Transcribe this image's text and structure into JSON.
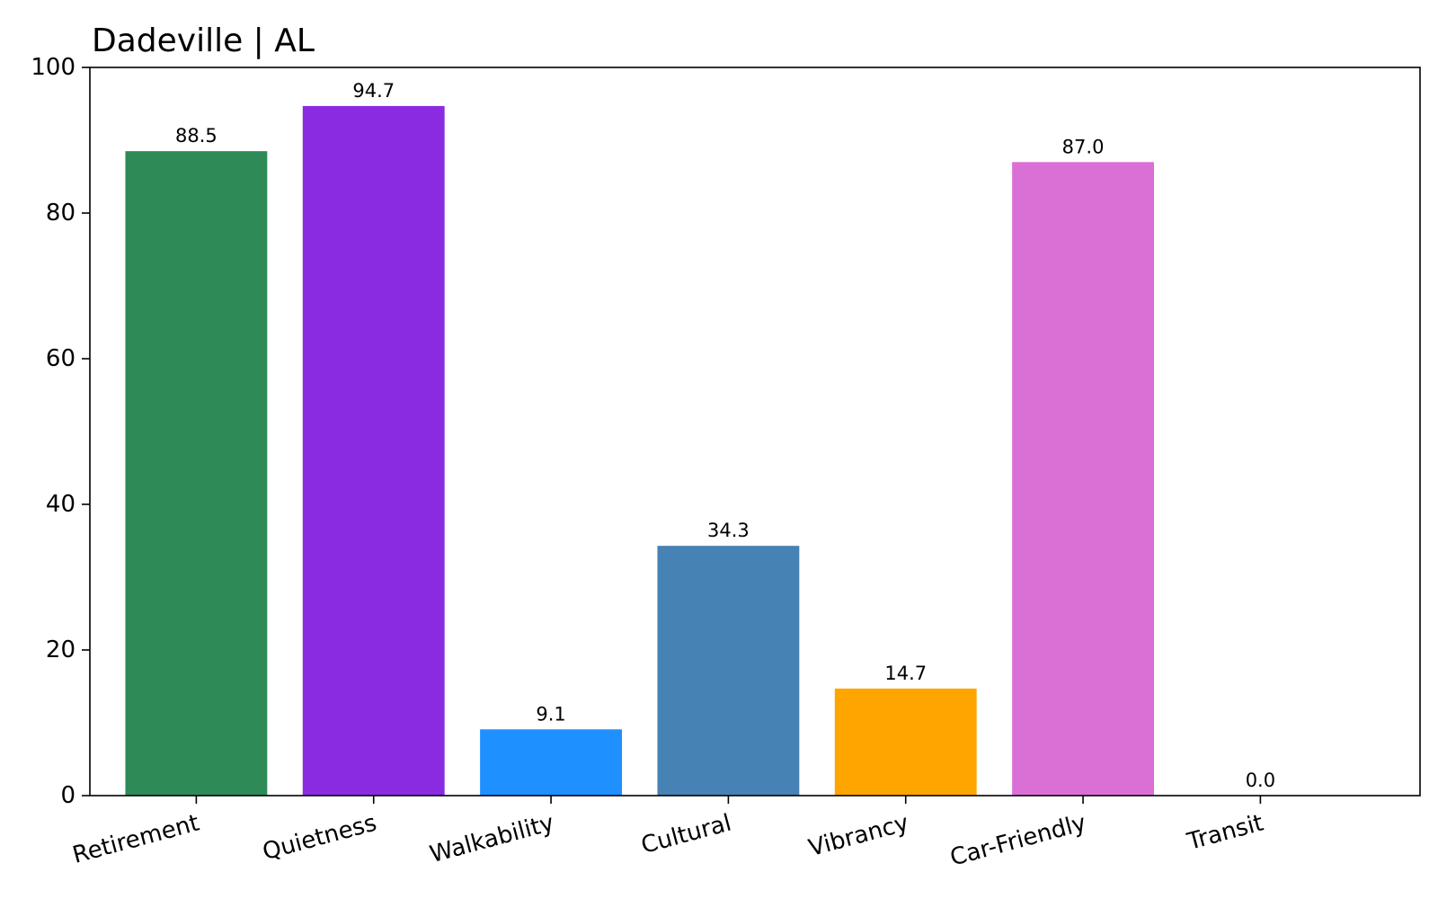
{
  "chart_data": {
    "type": "bar",
    "title": "Dadeville | AL",
    "xlabel": "",
    "ylabel": "",
    "categories": [
      "Retirement",
      "Quietness",
      "Walkability",
      "Cultural",
      "Vibrancy",
      "Car-Friendly",
      "Transit"
    ],
    "values": [
      88.5,
      94.7,
      9.1,
      34.3,
      14.7,
      87.0,
      0.0
    ],
    "value_labels": [
      "88.5",
      "94.7",
      "9.1",
      "34.3",
      "14.7",
      "87.0",
      "0.0"
    ],
    "colors": [
      "#2e8b57",
      "#8a2be2",
      "#1e90ff",
      "#4682b4",
      "#ffa500",
      "#da70d6",
      "#ff6347"
    ],
    "ylim": [
      0,
      100
    ],
    "yticks": [
      0,
      20,
      40,
      60,
      80,
      100
    ],
    "grid": false,
    "legend": "none"
  }
}
